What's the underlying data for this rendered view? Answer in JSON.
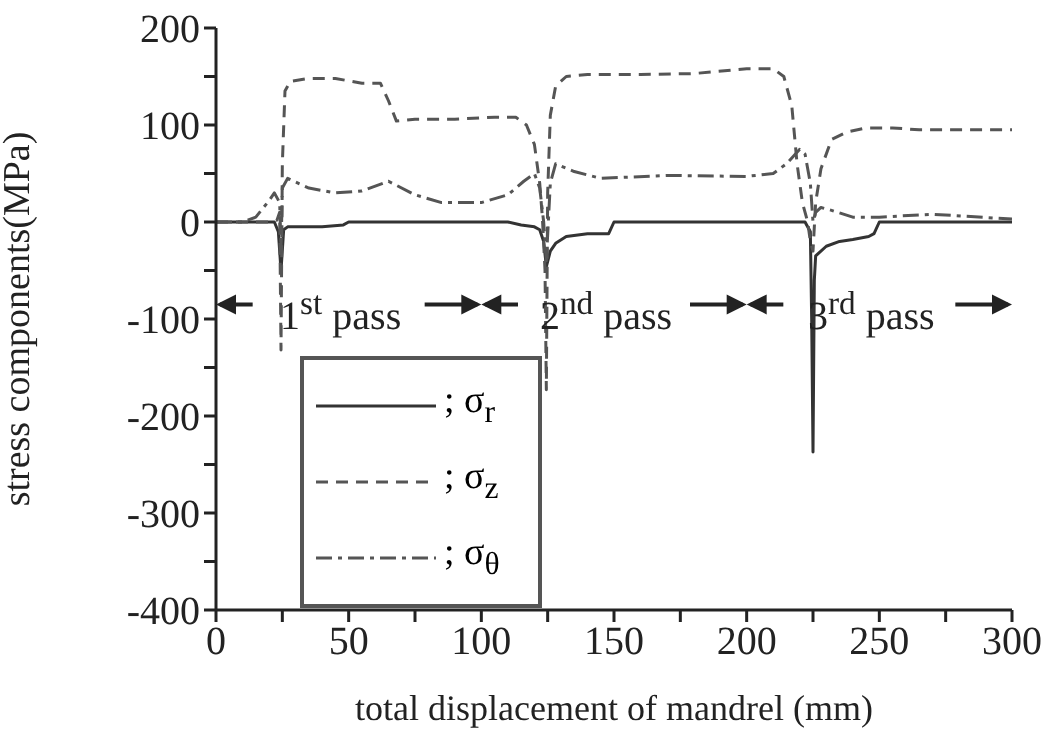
{
  "chart_data": {
    "type": "line",
    "xlabel": "total displacement of mandrel (mm)",
    "ylabel": "stress components(MPa)",
    "xlim": [
      0,
      300
    ],
    "xticks": [
      0,
      {
        "value": 25,
        "label": null
      },
      50,
      {
        "value": 75,
        "label": null
      },
      100,
      {
        "value": 125,
        "label": null
      },
      150,
      {
        "value": 175,
        "label": null
      },
      200,
      {
        "value": 225,
        "label": null
      },
      250,
      {
        "value": 275,
        "label": null
      },
      300
    ],
    "ylim": [
      -400,
      200
    ],
    "yticks": [
      -400,
      {
        "value": -350,
        "label": null
      },
      -300,
      {
        "value": -250,
        "label": null
      },
      -200,
      {
        "value": -150,
        "label": null
      },
      -100,
      {
        "value": -50,
        "label": null
      },
      0,
      {
        "value": 50,
        "label": null
      },
      100,
      {
        "value": 150,
        "label": null
      },
      200
    ],
    "legend": "bottom left",
    "grid": false,
    "marker": "none",
    "annotations": [
      "1$^{st}$ pass",
      "2$^{nd}$ pass",
      "3$^{rd}$ pass"
    ],
    "series": [
      {
        "name": "; σ$_{r}$",
        "color": "#333333",
        "line_style": "solid",
        "x": [
          0,
          22,
          23.5,
          24.5,
          25.5,
          27,
          40,
          48,
          50,
          110,
          115,
          120,
          122,
          123.5,
          124.5,
          126,
          128,
          132,
          140,
          148,
          150,
          222,
          224,
          224.5,
          225,
          225.5,
          226,
          230,
          235,
          240,
          246,
          248,
          250,
          300
        ],
        "values": [
          0,
          0,
          -10,
          -50,
          -8,
          -5,
          -5,
          -3,
          0,
          0,
          -3,
          -5,
          -8,
          -20,
          -46,
          -30,
          -22,
          -15,
          -12,
          -12,
          0,
          0,
          -10,
          -100,
          -237,
          -60,
          -35,
          -25,
          -20,
          -18,
          -15,
          -12,
          0,
          0
        ]
      },
      {
        "name": "; σ$_{z}$",
        "color": "#555555",
        "line_style": "dashed",
        "x": [
          0,
          20,
          23,
          24,
          24.5,
          25,
          26,
          28,
          35,
          45,
          55,
          62,
          65,
          68,
          75,
          90,
          105,
          113,
          117,
          120,
          122,
          123,
          124,
          124.5,
          125,
          126,
          128,
          132,
          140,
          160,
          180,
          200,
          210,
          214,
          217,
          219,
          221,
          223,
          224,
          225,
          226,
          228,
          232,
          238,
          245,
          255,
          265,
          280,
          300
        ],
        "values": [
          0,
          0,
          2,
          10,
          -132,
          60,
          135,
          145,
          148,
          148,
          143,
          143,
          125,
          104,
          106,
          106,
          108,
          108,
          100,
          80,
          40,
          5,
          -50,
          -173,
          30,
          110,
          140,
          150,
          152,
          152,
          153,
          158,
          158,
          150,
          120,
          60,
          20,
          0,
          -20,
          -30,
          20,
          55,
          85,
          93,
          97,
          97,
          95,
          95,
          95
        ]
      },
      {
        "name": "; σ$_{θ}$",
        "color": "#555555",
        "line_style": "dashdot",
        "x": [
          0,
          10,
          15,
          20,
          22,
          24,
          24.5,
          25,
          27,
          35,
          45,
          55,
          65,
          75,
          85,
          100,
          110,
          116,
          120,
          122,
          123.5,
          124.5,
          126,
          128,
          135,
          145,
          170,
          200,
          210,
          215,
          220,
          222,
          224,
          225,
          226,
          228,
          232,
          240,
          250,
          270,
          300
        ],
        "values": [
          0,
          0,
          5,
          22,
          30,
          20,
          -30,
          35,
          45,
          35,
          30,
          32,
          42,
          28,
          20,
          20,
          28,
          42,
          50,
          35,
          0,
          -40,
          40,
          60,
          52,
          45,
          48,
          47,
          50,
          60,
          75,
          70,
          40,
          0,
          10,
          15,
          12,
          5,
          5,
          8,
          3
        ]
      }
    ]
  }
}
